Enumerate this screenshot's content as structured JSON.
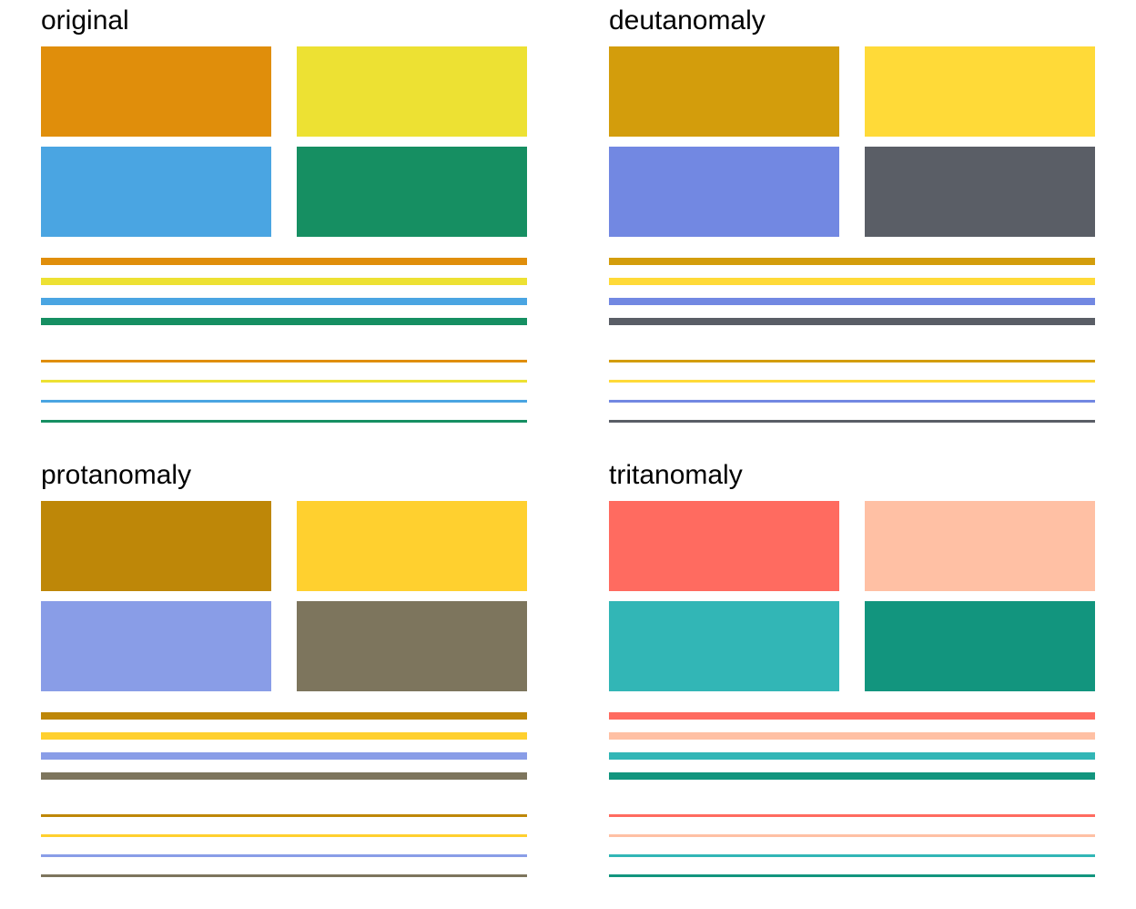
{
  "panels": [
    {
      "title": "original",
      "colors": [
        "#E08E0B",
        "#EDE133",
        "#4AA5E2",
        "#168F62"
      ]
    },
    {
      "title": "deutanomaly",
      "colors": [
        "#D39D0C",
        "#FFDA38",
        "#7288E2",
        "#5A5E66"
      ]
    },
    {
      "title": "protanomaly",
      "colors": [
        "#BE8708",
        "#FFD02F",
        "#899DE7",
        "#7D755D"
      ]
    },
    {
      "title": "tritanomaly",
      "colors": [
        "#FF6B60",
        "#FFC0A4",
        "#32B6B6",
        "#12957E"
      ]
    }
  ]
}
